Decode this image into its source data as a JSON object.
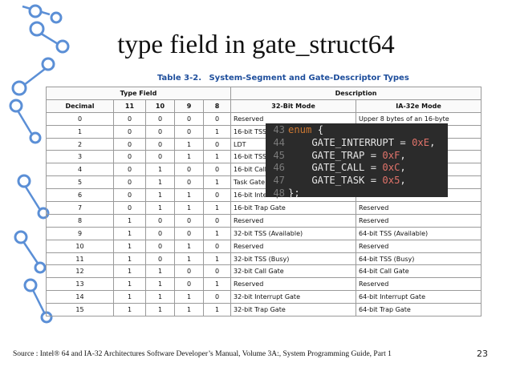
{
  "slide": {
    "title": "type field in gate_struct64",
    "footer": "Source : Intel® 64 and IA-32 Architectures Software Developer’s Manual, Volume 3A:, System Programming Guide, Part 1",
    "page_number": "23"
  },
  "table": {
    "caption_number": "Table 3-2.",
    "caption_title": "System-Segment and Gate-Descriptor Types",
    "group_headers": {
      "type_field": "Type Field",
      "description": "Description"
    },
    "columns": [
      "Decimal",
      "11",
      "10",
      "9",
      "8",
      "32-Bit Mode",
      "IA-32e Mode"
    ],
    "rows": [
      [
        "0",
        "0",
        "0",
        "0",
        "0",
        "Reserved",
        "Upper 8 bytes of an 16-byte"
      ],
      [
        "1",
        "0",
        "0",
        "0",
        "1",
        "16-bit TSS",
        ""
      ],
      [
        "2",
        "0",
        "0",
        "1",
        "0",
        "LDT",
        ""
      ],
      [
        "3",
        "0",
        "0",
        "1",
        "1",
        "16-bit TSS",
        ""
      ],
      [
        "4",
        "0",
        "1",
        "0",
        "0",
        "16-bit Call",
        ""
      ],
      [
        "5",
        "0",
        "1",
        "0",
        "1",
        "Task Gate",
        "Reserved"
      ],
      [
        "6",
        "0",
        "1",
        "1",
        "0",
        "16-bit Interrupt Gate",
        "Reserved"
      ],
      [
        "7",
        "0",
        "1",
        "1",
        "1",
        "16-bit Trap Gate",
        "Reserved"
      ],
      [
        "8",
        "1",
        "0",
        "0",
        "0",
        "Reserved",
        "Reserved"
      ],
      [
        "9",
        "1",
        "0",
        "0",
        "1",
        "32-bit TSS (Available)",
        "64-bit TSS (Available)"
      ],
      [
        "10",
        "1",
        "0",
        "1",
        "0",
        "Reserved",
        "Reserved"
      ],
      [
        "11",
        "1",
        "0",
        "1",
        "1",
        "32-bit TSS (Busy)",
        "64-bit TSS (Busy)"
      ],
      [
        "12",
        "1",
        "1",
        "0",
        "0",
        "32-bit Call Gate",
        "64-bit Call Gate"
      ],
      [
        "13",
        "1",
        "1",
        "0",
        "1",
        "Reserved",
        "Reserved"
      ],
      [
        "14",
        "1",
        "1",
        "1",
        "0",
        "32-bit Interrupt Gate",
        "64-bit Interrupt Gate"
      ],
      [
        "15",
        "1",
        "1",
        "1",
        "1",
        "32-bit Trap Gate",
        "64-bit Trap Gate"
      ]
    ]
  },
  "code": {
    "lines": [
      {
        "num": "43",
        "kw": "enum",
        "text": " {",
        "value": ""
      },
      {
        "num": "44",
        "kw": "",
        "text": "    GATE_INTERRUPT = ",
        "value": "0xE",
        "tail": ","
      },
      {
        "num": "45",
        "kw": "",
        "text": "    GATE_TRAP = ",
        "value": "0xF",
        "tail": ","
      },
      {
        "num": "46",
        "kw": "",
        "text": "    GATE_CALL = ",
        "value": "0xC",
        "tail": ","
      },
      {
        "num": "47",
        "kw": "",
        "text": "    GATE_TASK = ",
        "value": "0x5",
        "tail": ","
      },
      {
        "num": "48",
        "kw": "",
        "text": "};",
        "value": ""
      }
    ]
  },
  "colors": {
    "caption": "#1e4e9c",
    "code_bg": "#2b2b2b",
    "code_keyword": "#cc7832",
    "code_number": "#e0736a",
    "decoration": "#5b8fd6"
  },
  "decoration_icon": "molecule-chain-decoration"
}
